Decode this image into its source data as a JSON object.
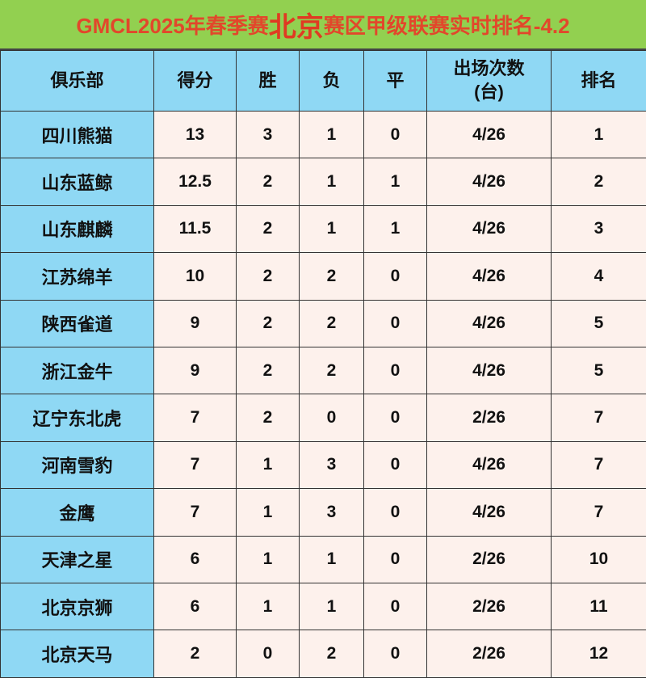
{
  "title": {
    "prefix": "GMCL2025年春季赛",
    "highlight": "北京",
    "suffix": "赛区甲级联赛实时排名-4.2"
  },
  "colors": {
    "title_bg": "#92d050",
    "title_text": "#e2472b",
    "header_bg": "#8fd8f4",
    "cell_bg": "#fdf1ec"
  },
  "headers": [
    "俱乐部",
    "得分",
    "胜",
    "负",
    "平",
    "出场次数\n(台)",
    "排名"
  ],
  "rows": [
    [
      "四川熊猫",
      "13",
      "3",
      "1",
      "0",
      "4/26",
      "1"
    ],
    [
      "山东蓝鲸",
      "12.5",
      "2",
      "1",
      "1",
      "4/26",
      "2"
    ],
    [
      "山东麒麟",
      "11.5",
      "2",
      "1",
      "1",
      "4/26",
      "3"
    ],
    [
      "江苏绵羊",
      "10",
      "2",
      "2",
      "0",
      "4/26",
      "4"
    ],
    [
      "陕西雀道",
      "9",
      "2",
      "2",
      "0",
      "4/26",
      "5"
    ],
    [
      "浙江金牛",
      "9",
      "2",
      "2",
      "0",
      "4/26",
      "5"
    ],
    [
      "辽宁东北虎",
      "7",
      "2",
      "0",
      "0",
      "2/26",
      "7"
    ],
    [
      "河南雪豹",
      "7",
      "1",
      "3",
      "0",
      "4/26",
      "7"
    ],
    [
      "金鹰",
      "7",
      "1",
      "3",
      "0",
      "4/26",
      "7"
    ],
    [
      "天津之星",
      "6",
      "1",
      "1",
      "0",
      "2/26",
      "10"
    ],
    [
      "北京京狮",
      "6",
      "1",
      "1",
      "0",
      "2/26",
      "11"
    ],
    [
      "北京天马",
      "2",
      "0",
      "2",
      "0",
      "2/26",
      "12"
    ]
  ]
}
